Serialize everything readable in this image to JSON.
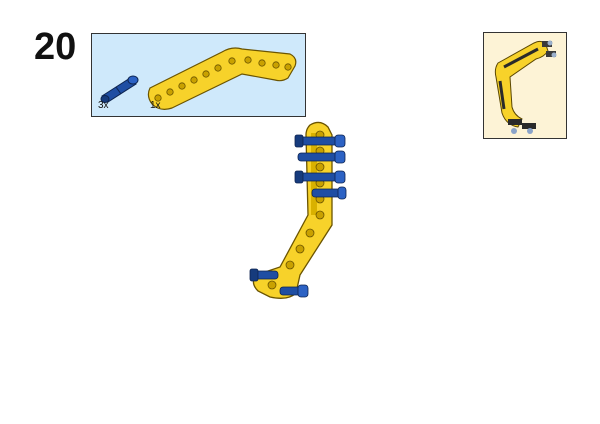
{
  "step": {
    "number": "20"
  },
  "parts_list": {
    "items": [
      {
        "icon": "blue-axle-pin-icon",
        "quantity": "3x"
      },
      {
        "icon": "yellow-bent-beam-icon",
        "quantity": "1x"
      }
    ]
  },
  "colors": {
    "parts_background": "#cfe9fb",
    "overview_background": "#fdf3d6",
    "beam_yellow": "#f7d22a",
    "pin_blue": "#1f4ea3"
  }
}
